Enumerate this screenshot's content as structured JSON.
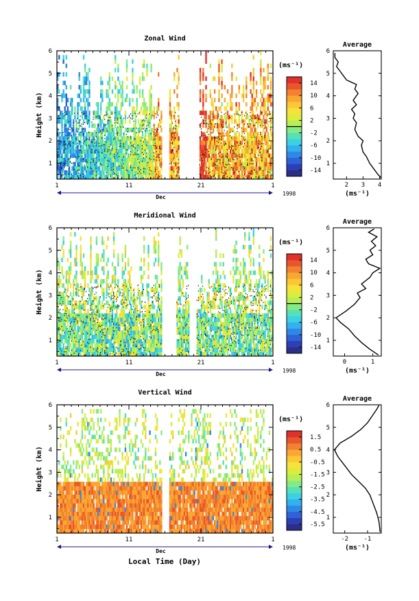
{
  "figure": {
    "x_axis_title": "Local Time (Day)",
    "month_label": "Dec",
    "year_label": "1998"
  },
  "chart_data": [
    {
      "type": "heatmap",
      "title": "Zonal Wind",
      "ylabel": "Height (km)",
      "unit_label": "(ms⁻¹)",
      "ylim": [
        0.3,
        6.0
      ],
      "yticks": [
        "1",
        "2",
        "3",
        "4",
        "5",
        "6"
      ],
      "xlim": [
        1,
        31
      ],
      "xticks": [
        "1",
        "11",
        "21",
        "1"
      ],
      "colorbar": {
        "range": [
          -16,
          16
        ],
        "tick_values": [
          14,
          10,
          6,
          2,
          -2,
          -6,
          -10,
          -14
        ],
        "tick_labels": [
          "14",
          "10",
          "6",
          "2",
          "-2",
          "-6",
          "-10",
          "-14"
        ],
        "zero_level": 0
      },
      "gaps_days": [
        [
          15.6,
          16.6
        ],
        [
          18.0,
          20.8
        ]
      ],
      "colorscheme_hint": "early days blue/green, late days yellow/orange/red",
      "average_profile": {
        "title": "Average",
        "xlabel": "(ms⁻¹)",
        "xlim": [
          1.2,
          4.1
        ],
        "xticks": [
          "2",
          "3",
          "4"
        ],
        "yticks": [
          "1",
          "2",
          "3",
          "4",
          "5",
          "6"
        ],
        "points": [
          [
            4.1,
            0.35
          ],
          [
            3.9,
            0.5
          ],
          [
            3.6,
            0.8
          ],
          [
            3.4,
            1.0
          ],
          [
            3.2,
            1.3
          ],
          [
            3.0,
            1.5
          ],
          [
            2.9,
            1.8
          ],
          [
            3.0,
            2.0
          ],
          [
            2.7,
            2.2
          ],
          [
            2.5,
            2.5
          ],
          [
            2.6,
            2.8
          ],
          [
            2.4,
            3.0
          ],
          [
            2.5,
            3.2
          ],
          [
            2.3,
            3.4
          ],
          [
            2.6,
            3.6
          ],
          [
            2.4,
            3.8
          ],
          [
            2.7,
            4.1
          ],
          [
            2.5,
            4.3
          ],
          [
            2.6,
            4.5
          ],
          [
            2.0,
            4.7
          ],
          [
            1.8,
            4.9
          ],
          [
            1.6,
            5.1
          ],
          [
            1.4,
            5.3
          ],
          [
            1.5,
            5.5
          ],
          [
            1.3,
            5.7
          ],
          [
            1.3,
            5.9
          ]
        ]
      }
    },
    {
      "type": "heatmap",
      "title": "Meridional Wind",
      "ylabel": "Height (km)",
      "unit_label": "(ms⁻¹)",
      "ylim": [
        0.3,
        6.0
      ],
      "yticks": [
        "1",
        "2",
        "3",
        "4",
        "5",
        "6"
      ],
      "xlim": [
        1,
        31
      ],
      "xticks": [
        "1",
        "11",
        "21",
        "1"
      ],
      "colorbar": {
        "range": [
          -16,
          16
        ],
        "tick_values": [
          14,
          10,
          6,
          2,
          -2,
          -6,
          -10,
          -14
        ],
        "tick_labels": [
          "14",
          "10",
          "6",
          "2",
          "-2",
          "-6",
          "-10",
          "-14"
        ],
        "zero_level": 0
      },
      "gaps_days": [
        [
          15.6,
          17.5
        ],
        [
          19.5,
          20.3
        ]
      ],
      "colorscheme_hint": "mostly green/cyan with scattered blue",
      "average_profile": {
        "title": "Average",
        "xlabel": "(ms⁻¹)",
        "xlim": [
          -0.4,
          1.3
        ],
        "xticks": [
          "0",
          "1"
        ],
        "yticks": [
          "1",
          "2",
          "3",
          "4",
          "5",
          "6"
        ],
        "points": [
          [
            1.2,
            0.35
          ],
          [
            0.9,
            0.6
          ],
          [
            0.6,
            0.9
          ],
          [
            0.35,
            1.2
          ],
          [
            0.15,
            1.5
          ],
          [
            -0.15,
            1.8
          ],
          [
            -0.3,
            2.0
          ],
          [
            0.05,
            2.3
          ],
          [
            0.35,
            2.6
          ],
          [
            0.55,
            2.9
          ],
          [
            0.45,
            3.1
          ],
          [
            0.75,
            3.3
          ],
          [
            0.6,
            3.5
          ],
          [
            0.9,
            3.8
          ],
          [
            1.0,
            4.0
          ],
          [
            1.25,
            4.2
          ],
          [
            0.85,
            4.4
          ],
          [
            0.75,
            4.6
          ],
          [
            1.0,
            4.8
          ],
          [
            0.9,
            5.0
          ],
          [
            1.1,
            5.2
          ],
          [
            0.95,
            5.4
          ],
          [
            1.15,
            5.6
          ],
          [
            0.85,
            5.8
          ],
          [
            1.05,
            5.95
          ]
        ]
      }
    },
    {
      "type": "heatmap",
      "title": "Vertical Wind",
      "ylabel": "Height (km)",
      "unit_label": "(ms⁻¹)",
      "ylim": [
        0.3,
        6.0
      ],
      "yticks": [
        "1",
        "2",
        "3",
        "4",
        "5",
        "6"
      ],
      "xlim": [
        1,
        31
      ],
      "xticks": [
        "1",
        "11",
        "21",
        "1"
      ],
      "colorbar": {
        "range": [
          -6,
          2
        ],
        "tick_values": [
          1.5,
          0.5,
          -0.5,
          -1.5,
          -2.5,
          -3.5,
          -4.5,
          -5.5
        ],
        "tick_labels": [
          "1.5",
          "0.5",
          "-0.5",
          "-1.5",
          "-2.5",
          "-3.5",
          "-4.5",
          "-5.5"
        ],
        "zero_level": null
      },
      "gaps_days": [
        [
          15.6,
          16.5
        ]
      ],
      "colorscheme_hint": "orange below ~2.5 km, sparse green above",
      "average_profile": {
        "title": "Average",
        "xlabel": "(ms⁻¹)",
        "xlim": [
          -2.5,
          -0.4
        ],
        "xticks": [
          "-2",
          "-1"
        ],
        "yticks": [
          "1",
          "2",
          "3",
          "4",
          "5",
          "6"
        ],
        "points": [
          [
            -0.45,
            0.35
          ],
          [
            -0.5,
            0.8
          ],
          [
            -0.6,
            1.2
          ],
          [
            -0.75,
            1.6
          ],
          [
            -0.9,
            2.0
          ],
          [
            -1.1,
            2.3
          ],
          [
            -1.4,
            2.6
          ],
          [
            -1.7,
            2.9
          ],
          [
            -2.0,
            3.3
          ],
          [
            -2.3,
            3.7
          ],
          [
            -2.45,
            4.0
          ],
          [
            -2.2,
            4.3
          ],
          [
            -1.7,
            4.6
          ],
          [
            -1.3,
            4.9
          ],
          [
            -1.0,
            5.2
          ],
          [
            -0.8,
            5.5
          ],
          [
            -0.6,
            5.8
          ],
          [
            -0.5,
            5.98
          ]
        ]
      }
    }
  ]
}
